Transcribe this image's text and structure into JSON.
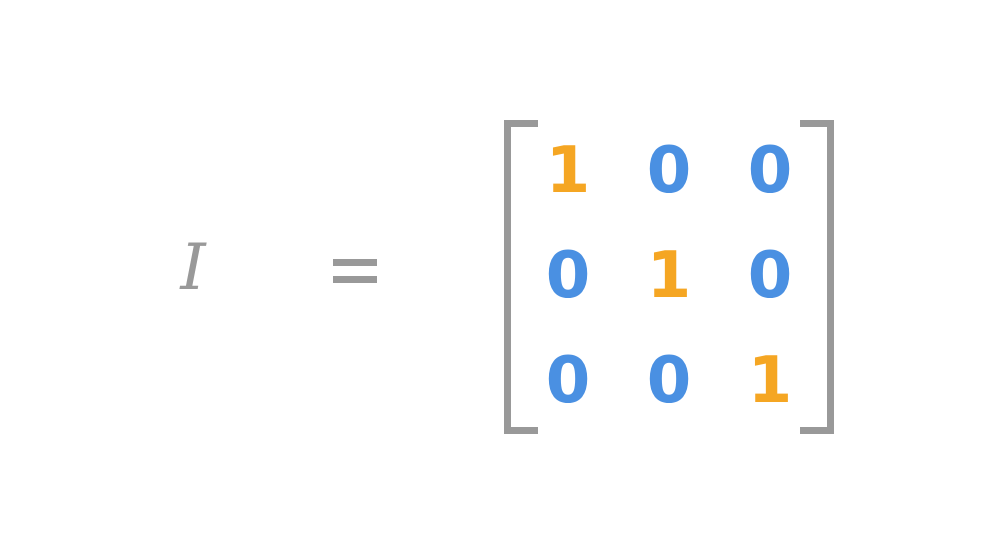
{
  "equation": {
    "symbol": "I",
    "equals_sign": "="
  },
  "matrix": {
    "rows": [
      [
        "1",
        "0",
        "0"
      ],
      [
        "0",
        "1",
        "0"
      ],
      [
        "0",
        "0",
        "1"
      ]
    ]
  },
  "colors": {
    "diagonal": "#f5a623",
    "off_diagonal": "#4a90e2",
    "symbols": "#999999"
  }
}
